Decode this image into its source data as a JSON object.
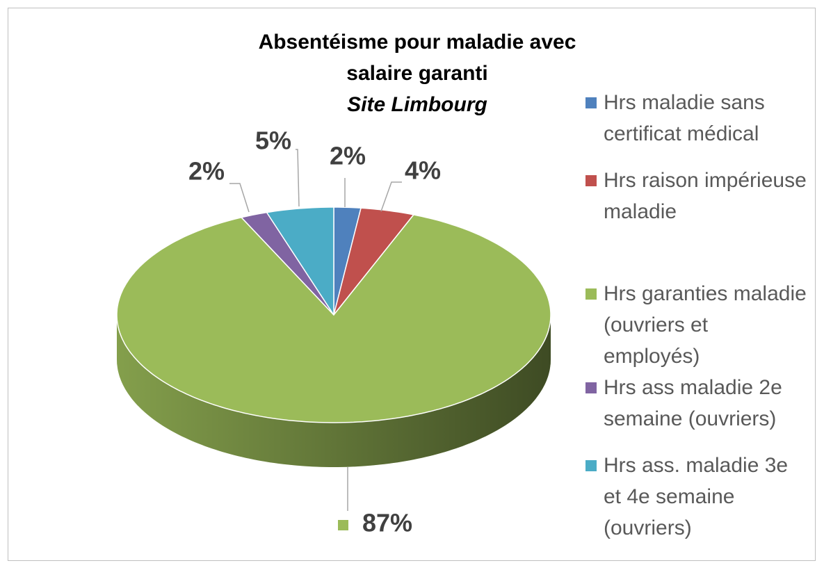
{
  "chart_data": {
    "type": "pie3d",
    "title": "Absentéisme pour maladie avec salaire garanti",
    "subtitle": "Site Limbourg",
    "categories": [
      "Hrs maladie sans certificat médical",
      "Hrs raison impérieuse maladie",
      "Hrs garanties maladie (ouvriers et employés)",
      "Hrs ass maladie 2e semaine (ouvriers)",
      "Hrs ass. maladie 3e et 4e semaine (ouvriers)"
    ],
    "values": [
      2,
      4,
      87,
      2,
      5
    ],
    "value_labels": [
      "2%",
      "4%",
      "87%",
      "2%",
      "5%"
    ],
    "colors": [
      "#4f81bd",
      "#c0504d",
      "#9bbb59",
      "#8064a2",
      "#4bacc6"
    ],
    "legend": "right"
  }
}
